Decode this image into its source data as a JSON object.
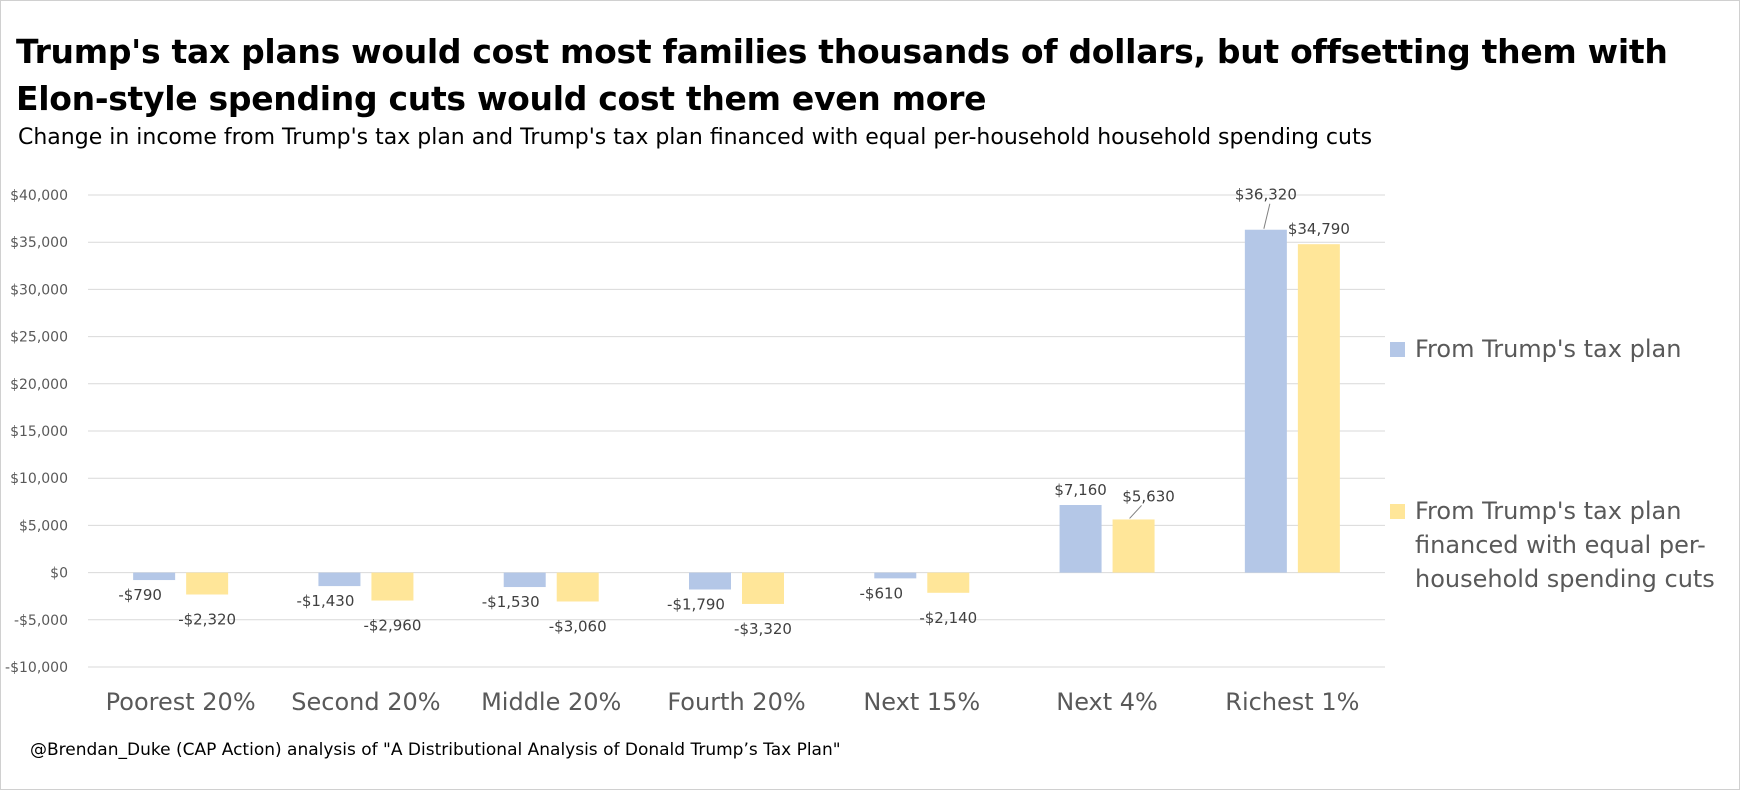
{
  "header": {
    "title": "Trump's tax plans would cost most families thousands of dollars, but offsetting them with Elon-style spending cuts would cost them even more",
    "subtitle": "Change in income from Trump's tax plan and Trump's tax plan financed with equal per-household household spending cuts"
  },
  "footer": {
    "source": "@Brendan_Duke (CAP Action) analysis of \"A Distributional Analysis of Donald Trump’s Tax Plan\""
  },
  "chart_data": {
    "type": "bar",
    "categories": [
      "Poorest 20%",
      "Second 20%",
      "Middle 20%",
      "Fourth 20%",
      "Next 15%",
      "Next 4%",
      "Richest 1%"
    ],
    "series": [
      {
        "name": "From Trump's tax plan",
        "color": "#b4c7e7",
        "values": [
          -790,
          -1430,
          -1530,
          -1790,
          -610,
          7160,
          36320
        ],
        "labels": [
          "-$790",
          "-$1,430",
          "-$1,530",
          "-$1,790",
          "-$610",
          "$7,160",
          "$36,320"
        ]
      },
      {
        "name": "From Trump's tax plan financed with equal per-household spending cuts",
        "color": "#ffe699",
        "values": [
          -2320,
          -2960,
          -3060,
          -3320,
          -2140,
          5630,
          34790
        ],
        "labels": [
          "-$2,320",
          "-$2,960",
          "-$3,060",
          "-$3,320",
          "-$2,140",
          "$5,630",
          "$34,790"
        ]
      }
    ],
    "ylim": [
      -10000,
      40000
    ],
    "yticks": [
      40000,
      35000,
      30000,
      25000,
      20000,
      15000,
      10000,
      5000,
      0,
      -5000,
      -10000
    ],
    "ytick_labels": [
      "$40,000",
      "$35,000",
      "$30,000",
      "$25,000",
      "$20,000",
      "$15,000",
      "$10,000",
      "$5,000",
      "$0",
      "-$5,000",
      "-$10,000"
    ],
    "grid": true,
    "legend_position": "right",
    "xlabel": "",
    "ylabel": ""
  }
}
